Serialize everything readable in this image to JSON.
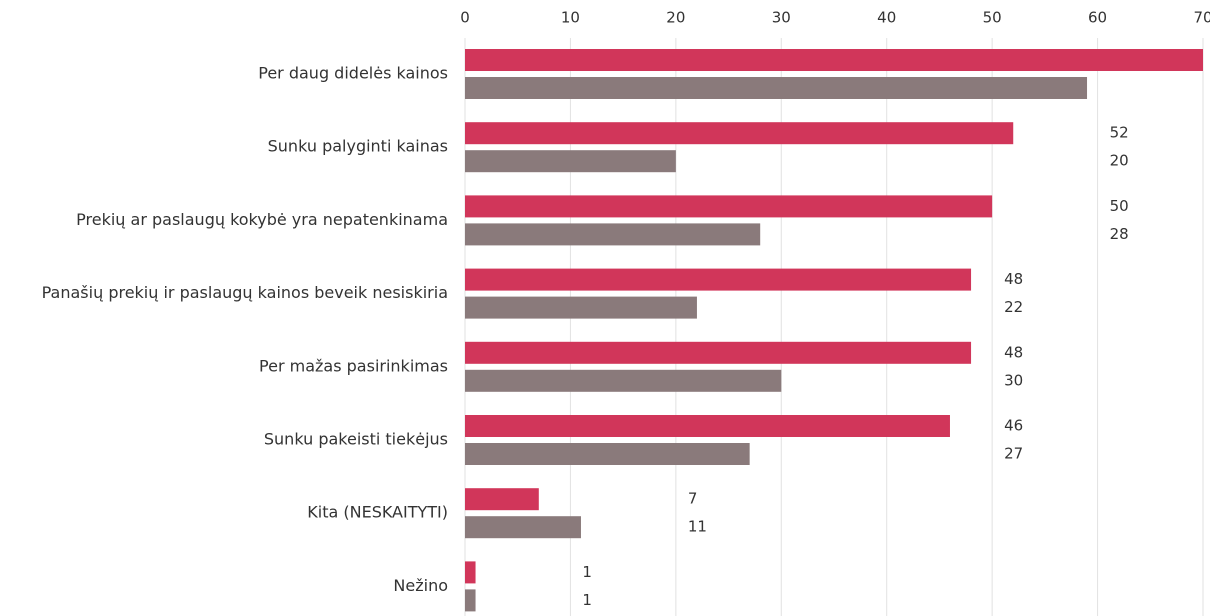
{
  "chart_data": {
    "type": "hbar",
    "categories": [
      "Per daug didelės kainos",
      "Sunku palyginti kainas",
      "Prekių ar paslaugų kokybė yra nepatenkinama",
      "Panašių prekių ir paslaugų kainos beveik nesiskiria",
      "Per mažas pasirinkimas",
      "Sunku pakeisti tiekėjus",
      "Kita (NESKAITYTI)",
      "Nežino"
    ],
    "series": [
      {
        "color": "#d1365a",
        "values": [
          70,
          52,
          50,
          48,
          48,
          46,
          7,
          1
        ]
      },
      {
        "color": "#8a7a7b",
        "values": [
          59,
          20,
          28,
          22,
          30,
          27,
          11,
          1
        ]
      }
    ],
    "xlim": [
      0,
      70
    ],
    "xticks": [
      0,
      10,
      20,
      30,
      40,
      50,
      60,
      70
    ],
    "grid": true
  }
}
